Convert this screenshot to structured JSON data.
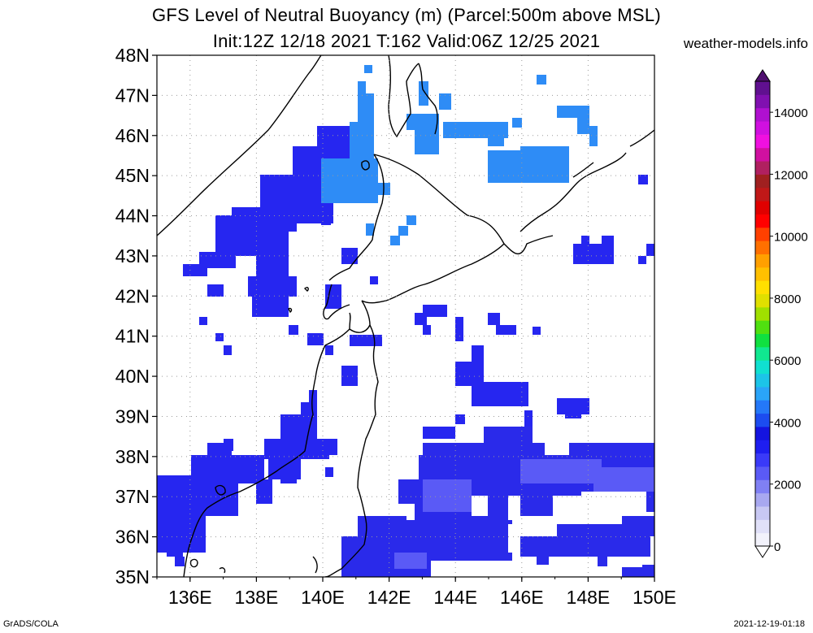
{
  "title_line1": "GFS Level of Neutral Buoyancy (m) (Parcel:500m above MSL)",
  "title_line2": "Init:12Z 12/18 2021 T:162 Valid:06Z 12/25 2021",
  "site": "weather-models.info",
  "footer_left": "GrADS/COLA",
  "footer_right": "2021-12-19-01:18",
  "lat_labels": [
    "48N",
    "47N",
    "46N",
    "45N",
    "44N",
    "43N",
    "42N",
    "41N",
    "40N",
    "39N",
    "38N",
    "37N",
    "36N",
    "35N"
  ],
  "lon_labels": [
    "136E",
    "138E",
    "140E",
    "142E",
    "144E",
    "146E",
    "148E",
    "150E"
  ],
  "colorbar": {
    "labels": [
      "0",
      "2000",
      "4000",
      "6000",
      "8000",
      "10000",
      "12000",
      "14000"
    ],
    "colors": [
      "#f2f2fb",
      "#e0e0f8",
      "#c8c8f3",
      "#a8a8f0",
      "#8080f4",
      "#5a5af6",
      "#3a3af8",
      "#1e1ef0",
      "#1414e0",
      "#1c4cf0",
      "#2478f8",
      "#2aa4f8",
      "#1cc4e8",
      "#10e0d0",
      "#10e890",
      "#10e040",
      "#50e010",
      "#a0e000",
      "#e0e000",
      "#ffe000",
      "#ffc000",
      "#ffa000",
      "#ff7000",
      "#ff4000",
      "#ff0000",
      "#e00000",
      "#c01818",
      "#a02020",
      "#b02060",
      "#d010a0",
      "#f010e0",
      "#d010e0",
      "#b010d0",
      "#8010b0",
      "#601090"
    ]
  }
}
